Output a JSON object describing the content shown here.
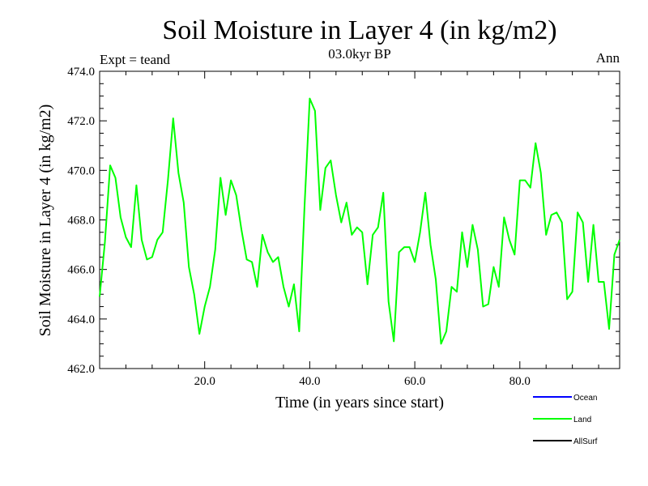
{
  "chart_data": {
    "type": "line",
    "title": "Soil Moisture in Layer 4 (in kg/m2)",
    "subtitle": "03.0kyr BP",
    "left_note": "Expt = teand",
    "right_note": "Ann",
    "xlabel": "Time (in years since start)",
    "ylabel": "Soil Moisture in Layer 4 (in kg/m2)",
    "xlim": [
      0,
      99
    ],
    "ylim": [
      462.0,
      474.0
    ],
    "x_ticks": [
      20,
      40,
      60,
      80
    ],
    "x_tick_labels": [
      "20.0",
      "40.0",
      "60.0",
      "80.0"
    ],
    "y_ticks": [
      462,
      464,
      466,
      468,
      470,
      472,
      474
    ],
    "y_tick_labels": [
      "462.0",
      "464.0",
      "466.0",
      "468.0",
      "470.0",
      "472.0",
      "474.0"
    ],
    "legend_position": "bottom-right",
    "legend": [
      {
        "name": "Ocean",
        "color": "#0000ff"
      },
      {
        "name": "Land",
        "color": "#00ff00"
      },
      {
        "name": "AllSurf",
        "color": "#000000"
      }
    ],
    "series": [
      {
        "name": "Land",
        "color": "#00ff00",
        "x": [
          0,
          1,
          2,
          3,
          4,
          5,
          6,
          7,
          8,
          9,
          10,
          11,
          12,
          13,
          14,
          15,
          16,
          17,
          18,
          19,
          20,
          21,
          22,
          23,
          24,
          25,
          26,
          27,
          28,
          29,
          30,
          31,
          32,
          33,
          34,
          35,
          36,
          37,
          38,
          39,
          40,
          41,
          42,
          43,
          44,
          45,
          46,
          47,
          48,
          49,
          50,
          51,
          52,
          53,
          54,
          55,
          56,
          57,
          58,
          59,
          60,
          61,
          62,
          63,
          64,
          65,
          66,
          67,
          68,
          69,
          70,
          71,
          72,
          73,
          74,
          75,
          76,
          77,
          78,
          79,
          80,
          81,
          82,
          83,
          84,
          85,
          86,
          87,
          88,
          89,
          90,
          91,
          92,
          93,
          94,
          95,
          96,
          97,
          98,
          99
        ],
        "values": [
          464.9,
          467.1,
          470.2,
          469.7,
          468.1,
          467.3,
          466.9,
          469.4,
          467.2,
          466.4,
          466.5,
          467.2,
          467.5,
          469.6,
          472.1,
          469.9,
          468.7,
          466.1,
          465.0,
          463.4,
          464.5,
          465.3,
          466.8,
          469.7,
          468.2,
          469.6,
          469.0,
          467.6,
          466.4,
          466.3,
          465.3,
          467.4,
          466.7,
          466.3,
          466.5,
          465.3,
          464.5,
          465.4,
          463.5,
          468.5,
          472.9,
          472.4,
          468.4,
          470.1,
          470.4,
          469.0,
          467.9,
          468.7,
          467.4,
          467.7,
          467.5,
          465.4,
          467.4,
          467.7,
          469.1,
          464.7,
          463.1,
          466.7,
          466.9,
          466.9,
          466.3,
          467.5,
          469.1,
          467.0,
          465.6,
          463.0,
          463.5,
          465.3,
          465.1,
          467.5,
          466.1,
          467.8,
          466.8,
          464.5,
          464.6,
          466.1,
          465.3,
          468.1,
          467.2,
          466.6,
          469.6,
          469.6,
          469.3,
          471.1,
          469.9,
          467.4,
          468.2,
          468.3,
          467.9,
          464.8,
          465.1,
          468.3,
          467.9,
          465.5,
          467.8,
          465.5,
          465.5,
          463.6,
          466.6,
          467.2
        ]
      }
    ]
  }
}
